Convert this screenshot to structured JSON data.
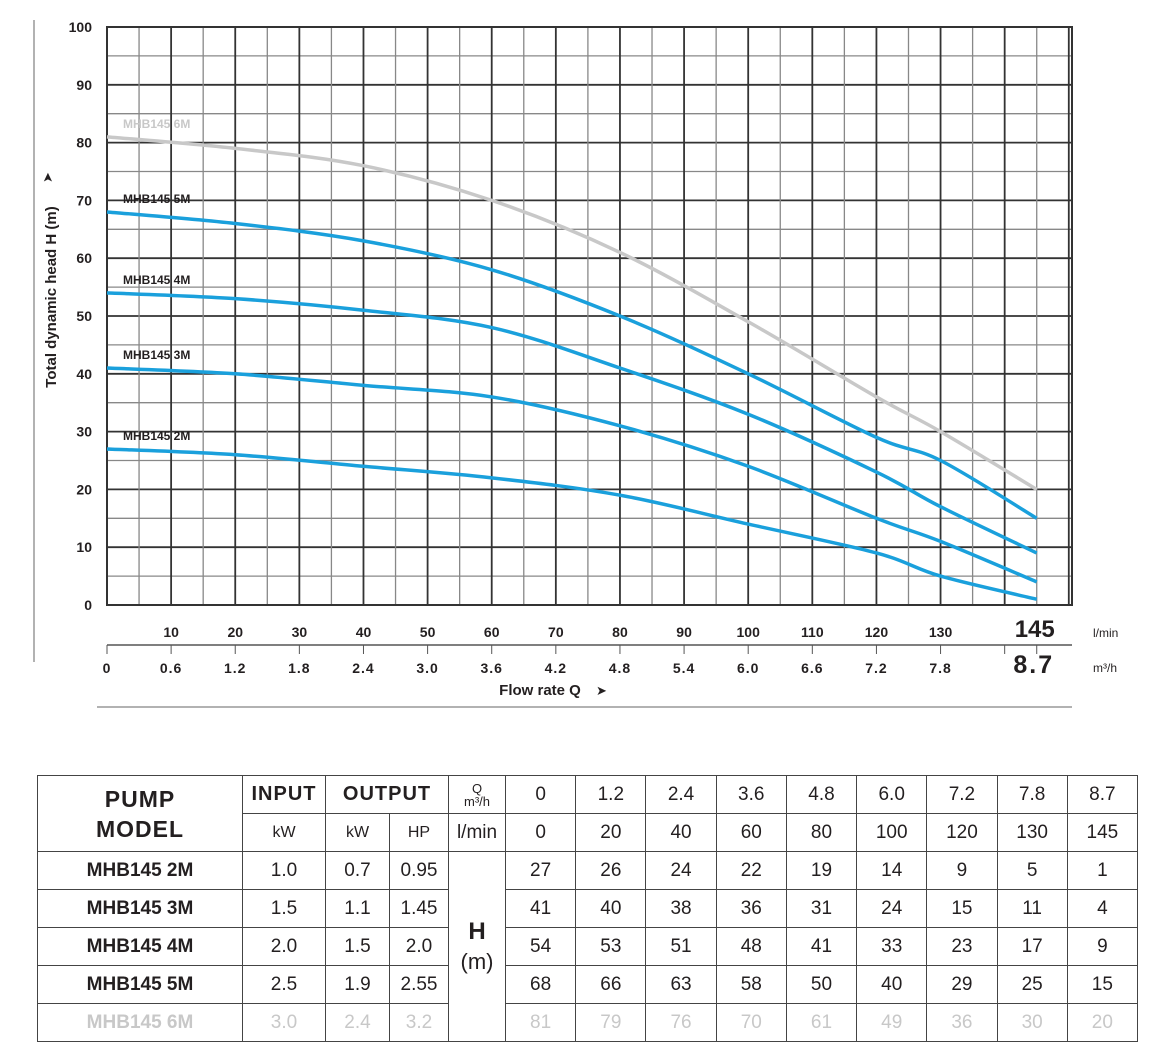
{
  "chart_data": {
    "type": "line",
    "ylabel": "Total dynamic head H (m)",
    "xlabel": "Flow rate Q",
    "ylim": [
      0,
      100
    ],
    "xlim": [
      0,
      150.5
    ],
    "yticks": [
      "0",
      "10",
      "20",
      "30",
      "40",
      "50",
      "60",
      "70",
      "80",
      "90",
      "100"
    ],
    "xticks_lpm": [
      "10",
      "20",
      "30",
      "40",
      "50",
      "60",
      "70",
      "80",
      "90",
      "100",
      "110",
      "120",
      "130"
    ],
    "xtick_lpm_end": "145",
    "xunit_lpm": "l/min",
    "xticks_m3h": [
      "0",
      "0.6",
      "1.2",
      "1.8",
      "2.4",
      "3.0",
      "3.6",
      "4.2",
      "4.8",
      "5.4",
      "6.0",
      "6.6",
      "7.2",
      "7.8"
    ],
    "xtick_m3h_end": "8.7",
    "xunit_m3h": "m³/h",
    "x": [
      0,
      20,
      40,
      60,
      80,
      100,
      120,
      130,
      145
    ],
    "series": [
      {
        "name": "MHB145 2M",
        "color": "#1aa0dc",
        "values": [
          27,
          26,
          24,
          22,
          19,
          14,
          9,
          5,
          1
        ]
      },
      {
        "name": "MHB145 3M",
        "color": "#1aa0dc",
        "values": [
          41,
          40,
          38,
          36,
          31,
          24,
          15,
          11,
          4
        ]
      },
      {
        "name": "MHB145 4M",
        "color": "#1aa0dc",
        "values": [
          54,
          53,
          51,
          48,
          41,
          33,
          23,
          17,
          9
        ]
      },
      {
        "name": "MHB145 5M",
        "color": "#1aa0dc",
        "values": [
          68,
          66,
          63,
          58,
          50,
          40,
          29,
          25,
          15
        ]
      },
      {
        "name": "MHB145 6M",
        "color": "#c8c8c8",
        "values": [
          81,
          79,
          76,
          70,
          61,
          49,
          36,
          30,
          20
        ]
      }
    ]
  },
  "table": {
    "pump_model": [
      "PUMP",
      "MODEL"
    ],
    "input": "INPUT",
    "output": "OUTPUT",
    "q": "Q",
    "m3h": "m³/h",
    "lmin": "l/min",
    "kw": "kW",
    "kw2": "kW",
    "hp": "HP",
    "h": "H",
    "hm": "(m)",
    "m3h_values": [
      "0",
      "1.2",
      "2.4",
      "3.6",
      "4.8",
      "6.0",
      "7.2",
      "7.8",
      "8.7"
    ],
    "lmin_values": [
      "0",
      "20",
      "40",
      "60",
      "80",
      "100",
      "120",
      "130",
      "145"
    ],
    "rows": [
      {
        "model": "MHB145  2M",
        "input": "1.0",
        "kw": "0.7",
        "hp": "0.95",
        "h": [
          "27",
          "26",
          "24",
          "22",
          "19",
          "14",
          "9",
          "5",
          "1"
        ]
      },
      {
        "model": "MHB145  3M",
        "input": "1.5",
        "kw": "1.1",
        "hp": "1.45",
        "h": [
          "41",
          "40",
          "38",
          "36",
          "31",
          "24",
          "15",
          "11",
          "4"
        ]
      },
      {
        "model": "MHB145  4M",
        "input": "2.0",
        "kw": "1.5",
        "hp": "2.0",
        "h": [
          "54",
          "53",
          "51",
          "48",
          "41",
          "33",
          "23",
          "17",
          "9"
        ]
      },
      {
        "model": "MHB145  5M",
        "input": "2.5",
        "kw": "1.9",
        "hp": "2.55",
        "h": [
          "68",
          "66",
          "63",
          "58",
          "50",
          "40",
          "29",
          "25",
          "15"
        ]
      },
      {
        "model": "MHB145  6M",
        "input": "3.0",
        "kw": "2.4",
        "hp": "3.2",
        "h": [
          "81",
          "79",
          "76",
          "70",
          "61",
          "49",
          "36",
          "30",
          "20"
        ]
      }
    ]
  }
}
